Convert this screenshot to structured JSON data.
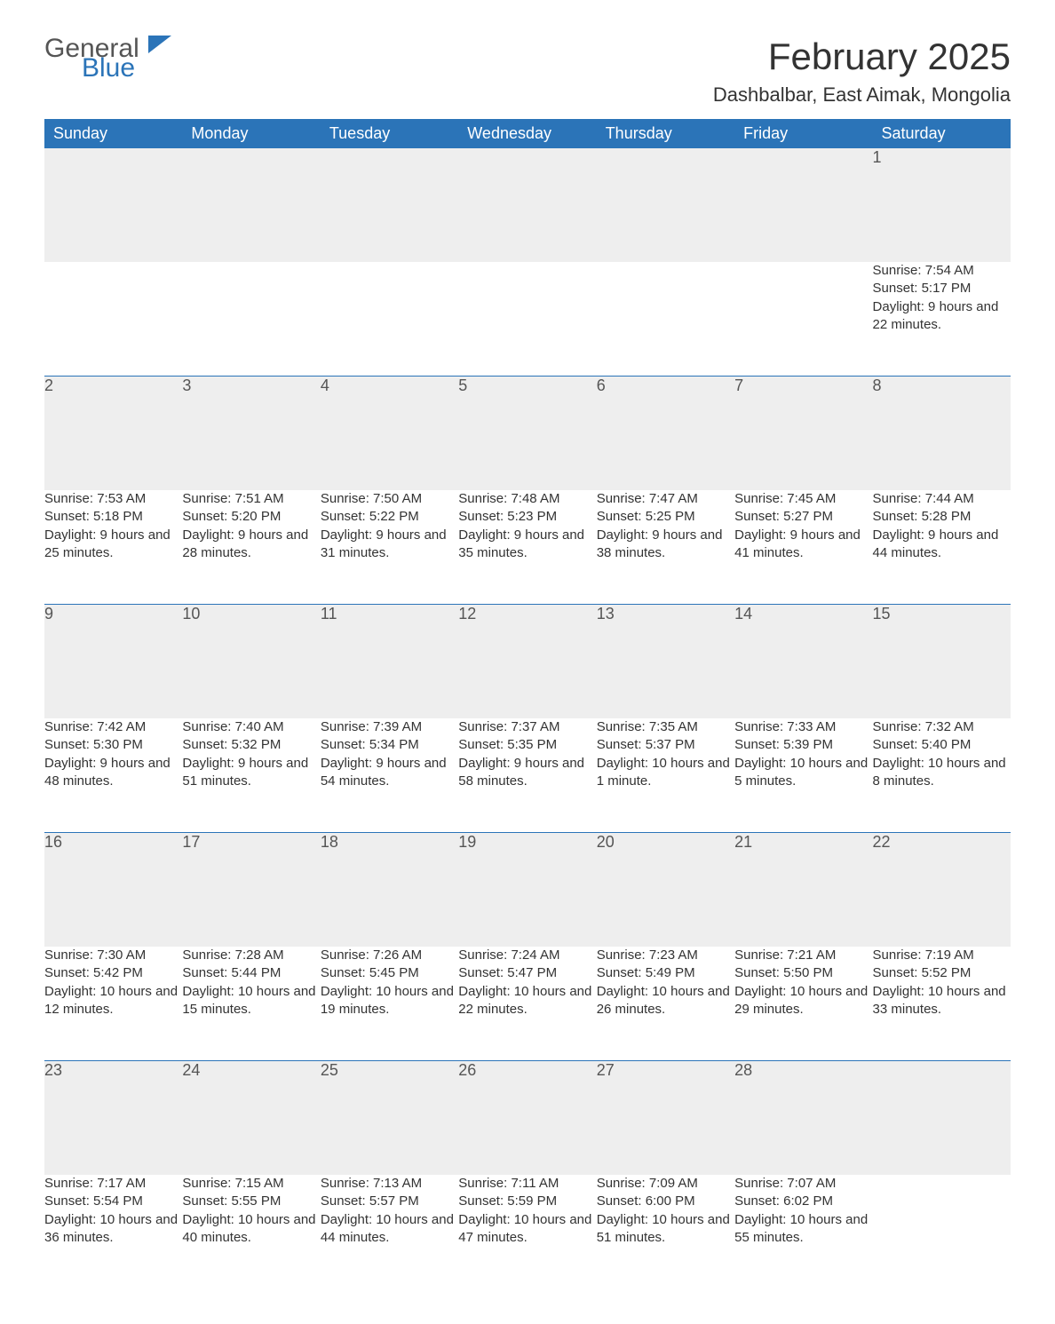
{
  "logo": {
    "text1": "General",
    "text2": "Blue",
    "accent": "#2b74b8"
  },
  "title": "February 2025",
  "location": "Dashbalbar, East Aimak, Mongolia",
  "colors": {
    "header_bg": "#2b74b8",
    "header_fg": "#ffffff",
    "daynum_bg": "#eeeeee",
    "row_border": "#2b74b8",
    "text": "#333333",
    "background": "#ffffff"
  },
  "fonts": {
    "title_pt": 42,
    "location_pt": 22,
    "daynames_pt": 18,
    "daynum_pt": 18,
    "body_pt": 15
  },
  "day_names": [
    "Sunday",
    "Monday",
    "Tuesday",
    "Wednesday",
    "Thursday",
    "Friday",
    "Saturday"
  ],
  "weeks": [
    [
      null,
      null,
      null,
      null,
      null,
      null,
      {
        "n": "1",
        "sunrise": "7:54 AM",
        "sunset": "5:17 PM",
        "daylight": "9 hours and 22 minutes."
      }
    ],
    [
      {
        "n": "2",
        "sunrise": "7:53 AM",
        "sunset": "5:18 PM",
        "daylight": "9 hours and 25 minutes."
      },
      {
        "n": "3",
        "sunrise": "7:51 AM",
        "sunset": "5:20 PM",
        "daylight": "9 hours and 28 minutes."
      },
      {
        "n": "4",
        "sunrise": "7:50 AM",
        "sunset": "5:22 PM",
        "daylight": "9 hours and 31 minutes."
      },
      {
        "n": "5",
        "sunrise": "7:48 AM",
        "sunset": "5:23 PM",
        "daylight": "9 hours and 35 minutes."
      },
      {
        "n": "6",
        "sunrise": "7:47 AM",
        "sunset": "5:25 PM",
        "daylight": "9 hours and 38 minutes."
      },
      {
        "n": "7",
        "sunrise": "7:45 AM",
        "sunset": "5:27 PM",
        "daylight": "9 hours and 41 minutes."
      },
      {
        "n": "8",
        "sunrise": "7:44 AM",
        "sunset": "5:28 PM",
        "daylight": "9 hours and 44 minutes."
      }
    ],
    [
      {
        "n": "9",
        "sunrise": "7:42 AM",
        "sunset": "5:30 PM",
        "daylight": "9 hours and 48 minutes."
      },
      {
        "n": "10",
        "sunrise": "7:40 AM",
        "sunset": "5:32 PM",
        "daylight": "9 hours and 51 minutes."
      },
      {
        "n": "11",
        "sunrise": "7:39 AM",
        "sunset": "5:34 PM",
        "daylight": "9 hours and 54 minutes."
      },
      {
        "n": "12",
        "sunrise": "7:37 AM",
        "sunset": "5:35 PM",
        "daylight": "9 hours and 58 minutes."
      },
      {
        "n": "13",
        "sunrise": "7:35 AM",
        "sunset": "5:37 PM",
        "daylight": "10 hours and 1 minute."
      },
      {
        "n": "14",
        "sunrise": "7:33 AM",
        "sunset": "5:39 PM",
        "daylight": "10 hours and 5 minutes."
      },
      {
        "n": "15",
        "sunrise": "7:32 AM",
        "sunset": "5:40 PM",
        "daylight": "10 hours and 8 minutes."
      }
    ],
    [
      {
        "n": "16",
        "sunrise": "7:30 AM",
        "sunset": "5:42 PM",
        "daylight": "10 hours and 12 minutes."
      },
      {
        "n": "17",
        "sunrise": "7:28 AM",
        "sunset": "5:44 PM",
        "daylight": "10 hours and 15 minutes."
      },
      {
        "n": "18",
        "sunrise": "7:26 AM",
        "sunset": "5:45 PM",
        "daylight": "10 hours and 19 minutes."
      },
      {
        "n": "19",
        "sunrise": "7:24 AM",
        "sunset": "5:47 PM",
        "daylight": "10 hours and 22 minutes."
      },
      {
        "n": "20",
        "sunrise": "7:23 AM",
        "sunset": "5:49 PM",
        "daylight": "10 hours and 26 minutes."
      },
      {
        "n": "21",
        "sunrise": "7:21 AM",
        "sunset": "5:50 PM",
        "daylight": "10 hours and 29 minutes."
      },
      {
        "n": "22",
        "sunrise": "7:19 AM",
        "sunset": "5:52 PM",
        "daylight": "10 hours and 33 minutes."
      }
    ],
    [
      {
        "n": "23",
        "sunrise": "7:17 AM",
        "sunset": "5:54 PM",
        "daylight": "10 hours and 36 minutes."
      },
      {
        "n": "24",
        "sunrise": "7:15 AM",
        "sunset": "5:55 PM",
        "daylight": "10 hours and 40 minutes."
      },
      {
        "n": "25",
        "sunrise": "7:13 AM",
        "sunset": "5:57 PM",
        "daylight": "10 hours and 44 minutes."
      },
      {
        "n": "26",
        "sunrise": "7:11 AM",
        "sunset": "5:59 PM",
        "daylight": "10 hours and 47 minutes."
      },
      {
        "n": "27",
        "sunrise": "7:09 AM",
        "sunset": "6:00 PM",
        "daylight": "10 hours and 51 minutes."
      },
      {
        "n": "28",
        "sunrise": "7:07 AM",
        "sunset": "6:02 PM",
        "daylight": "10 hours and 55 minutes."
      },
      null
    ]
  ],
  "labels": {
    "sunrise": "Sunrise: ",
    "sunset": "Sunset: ",
    "daylight": "Daylight: "
  }
}
